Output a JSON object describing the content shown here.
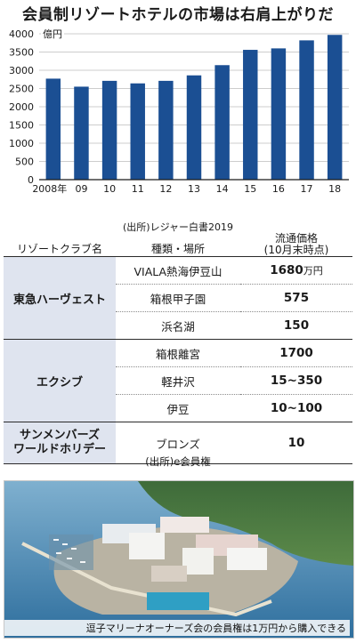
{
  "title": "会員制リゾートホテルの市場は右肩上がりだ",
  "chart_data": {
    "type": "bar",
    "unit_label": "億円",
    "categories": [
      "2008年",
      "09",
      "10",
      "11",
      "12",
      "13",
      "14",
      "15",
      "16",
      "17",
      "18"
    ],
    "values": [
      2770,
      2550,
      2710,
      2640,
      2710,
      2860,
      3140,
      3560,
      3600,
      3820,
      3970
    ],
    "ylim": [
      0,
      4000
    ],
    "yticks": [
      0,
      500,
      1000,
      1500,
      2000,
      2500,
      3000,
      3500,
      4000
    ],
    "bar_color": "#1b4f93"
  },
  "chart_source": "(出所)レジャー白書2019",
  "table": {
    "headers": {
      "club": "リゾートクラブ名",
      "type": "種類・場所",
      "price_line1": "流通価格",
      "price_line2": "(10月末時点)"
    },
    "groups": [
      {
        "club": "東急ハーヴェスト",
        "rows": [
          {
            "type": "VIALA熱海伊豆山",
            "price": "1680",
            "unit": "万円"
          },
          {
            "type": "箱根甲子園",
            "price": "575"
          },
          {
            "type": "浜名湖",
            "price": "150"
          }
        ]
      },
      {
        "club": "エクシブ",
        "rows": [
          {
            "type": "箱根離宮",
            "price": "1700"
          },
          {
            "type": "軽井沢",
            "price": "15~350"
          },
          {
            "type": "伊豆",
            "price": "10~100"
          }
        ]
      },
      {
        "club_line1": "サンメンバーズ",
        "club_line2": "ワールドホリデー",
        "rows": [
          {
            "type": "ブロンズ",
            "price": "10"
          }
        ]
      }
    ]
  },
  "table_source": "(出所)e会員権",
  "photo_caption": "逗子マリーナオーナーズ会の会員権は1万円から購入できる"
}
